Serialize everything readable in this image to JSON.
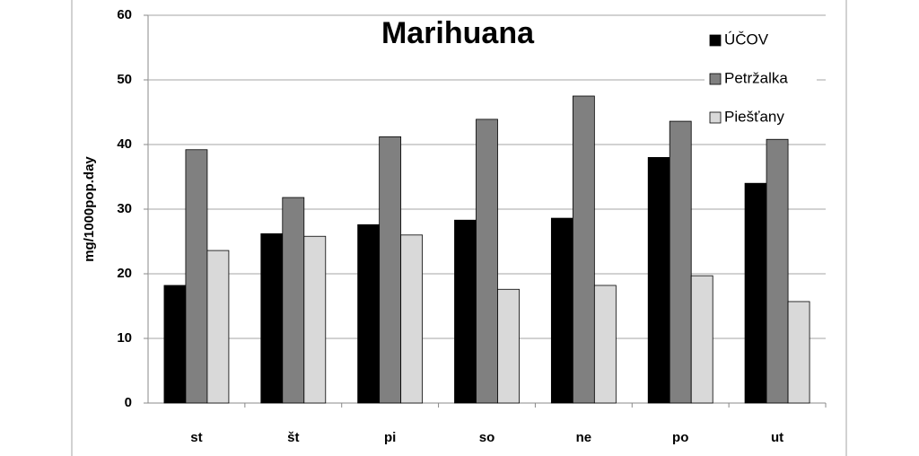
{
  "chart_data": {
    "type": "bar",
    "title": "Marihuana",
    "y_label": "mg/1000pop.day",
    "categories": [
      "st",
      "št",
      "pi",
      "so",
      "ne",
      "po",
      "ut"
    ],
    "series": [
      {
        "name": "ÚČOV",
        "color": "#000000",
        "values": [
          18.2,
          26.2,
          27.6,
          28.3,
          28.6,
          38,
          34
        ]
      },
      {
        "name": "Petržalka",
        "color": "#808080",
        "values": [
          39.2,
          31.8,
          41.2,
          43.9,
          47.5,
          43.6,
          40.8
        ]
      },
      {
        "name": "Piešťany",
        "color": "#d9d9d9",
        "values": [
          23.6,
          25.8,
          26,
          17.6,
          18.2,
          19.7,
          15.7
        ]
      }
    ],
    "ylim": [
      0,
      60
    ],
    "yticks": [
      0,
      10,
      20,
      30,
      40,
      50,
      60
    ],
    "grid": true,
    "legend": "upper right"
  }
}
